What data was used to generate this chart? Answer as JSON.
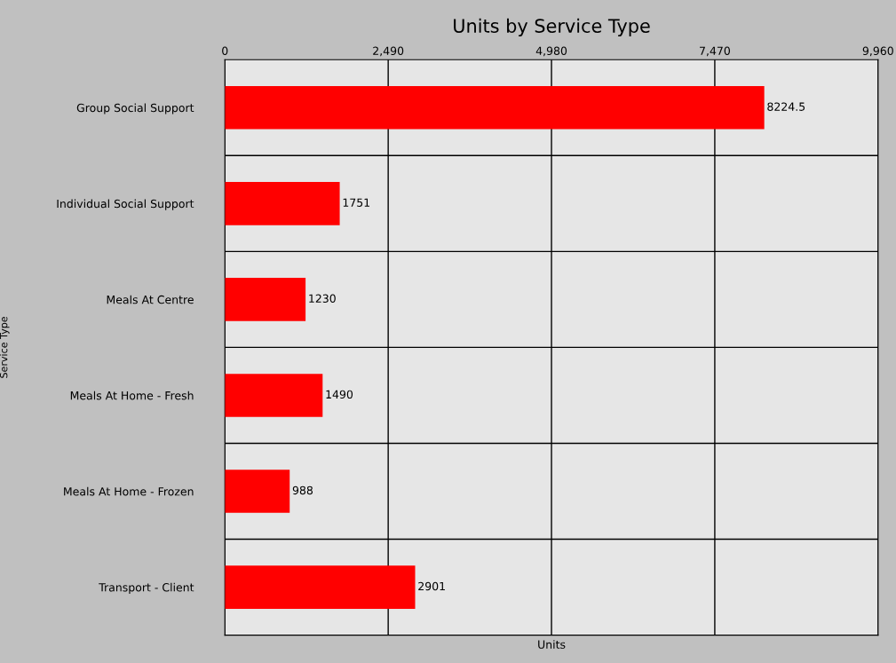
{
  "chart_data": {
    "type": "bar",
    "orientation": "horizontal",
    "title": "Units by Service Type",
    "xlabel": "Units",
    "ylabel": "Service Type",
    "categories": [
      "Group Social Support",
      "Individual Social Support",
      "Meals At Centre",
      "Meals At Home - Fresh",
      "Meals At Home - Frozen",
      "Transport - Client"
    ],
    "values": [
      8224.5,
      1751,
      1230,
      1490,
      988,
      2901
    ],
    "color": "#ff0000",
    "xlim": [
      0,
      9960
    ],
    "xticks": [
      0,
      {
        "value": 2490,
        "label": "2,490"
      },
      {
        "value": 4980,
        "label": "4,980"
      },
      {
        "value": 7470,
        "label": "7,470"
      },
      {
        "value": 9960,
        "label": "9,960"
      }
    ],
    "data_labels": true,
    "grid": "x"
  }
}
